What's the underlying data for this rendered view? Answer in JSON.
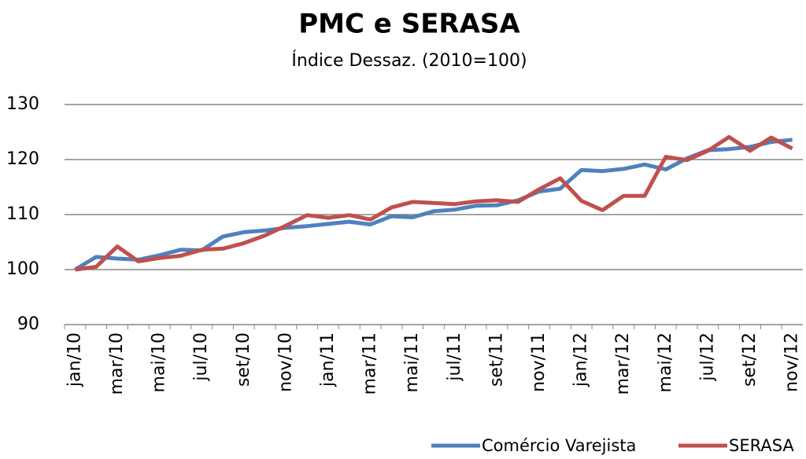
{
  "chart_data": {
    "type": "line",
    "title": "PMC e SERASA",
    "subtitle": "Índice Dessaz. (2010=100)",
    "categories": [
      "jan/10",
      null,
      "mar/10",
      null,
      "mai/10",
      null,
      "jul/10",
      null,
      "set/10",
      null,
      "nov/10",
      null,
      "jan/11",
      null,
      "mar/11",
      null,
      "mai/11",
      null,
      "jul/11",
      null,
      "set/11",
      null,
      "nov/11",
      null,
      "jan/12",
      null,
      "mar/12",
      null,
      "mai/12",
      null,
      "jul/12",
      null,
      "set/12",
      null,
      "nov/12"
    ],
    "series": [
      {
        "name": "Comércio Varejista",
        "color": "#4f81bd",
        "values": [
          100,
          102.3,
          102,
          101.8,
          102.6,
          103.6,
          103.5,
          106,
          106.8,
          107.1,
          107.6,
          107.9,
          108.3,
          108.7,
          108.2,
          109.7,
          109.5,
          110.6,
          110.9,
          111.6,
          111.7,
          112.6,
          114.2,
          114.7,
          118.1,
          117.9,
          118.3,
          119.1,
          118.2,
          120.2,
          121.7,
          121.9,
          122.3,
          123.2,
          123.6
        ]
      },
      {
        "name": "SERASA",
        "color": "#c0504d",
        "values": [
          100,
          100.5,
          104.2,
          101.5,
          102.1,
          102.5,
          103.6,
          103.8,
          104.8,
          106.2,
          108,
          109.9,
          109.4,
          109.9,
          109.1,
          111.3,
          112.3,
          112.1,
          111.9,
          112.4,
          112.6,
          112.3,
          114.6,
          116.6,
          112.5,
          110.8,
          113.4,
          113.4,
          120.5,
          119.9,
          121.6,
          124.1,
          121.6,
          124.0,
          122.0
        ]
      }
    ],
    "ylim": [
      90,
      130
    ],
    "yticks": [
      90,
      100,
      110,
      120,
      130
    ],
    "grid": true,
    "legend": "bottom-right"
  }
}
